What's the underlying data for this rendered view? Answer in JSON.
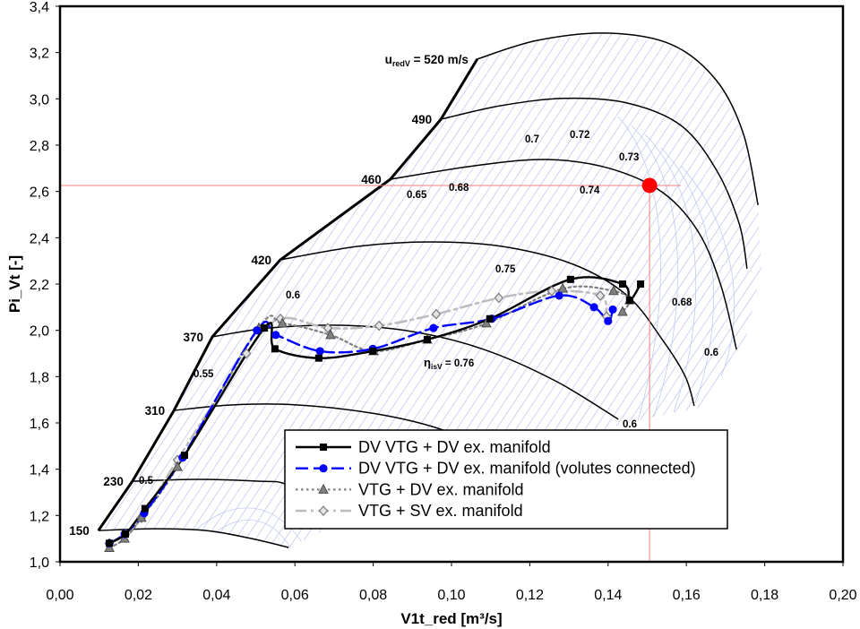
{
  "chart_data": {
    "type": "line",
    "xlabel": "V1t_red [m³/s]",
    "ylabel": "Pi_Vt [-]",
    "xlim": [
      0,
      0.2
    ],
    "ylim": [
      1.0,
      3.4
    ],
    "x_tick_labels": [
      "0,00",
      "0,02",
      "0,04",
      "0,06",
      "0,08",
      "0,10",
      "0,12",
      "0,14",
      "0,16",
      "0,18",
      "0,20"
    ],
    "y_tick_labels": [
      "1,0",
      "1,2",
      "1,4",
      "1,6",
      "1,8",
      "2,0",
      "2,2",
      "2,4",
      "2,6",
      "2,8",
      "3,0",
      "3,2",
      "3,4"
    ],
    "grid": false,
    "legend_position": "bottom-center",
    "series": [
      {
        "name": "DV VTG + DV ex. manifold",
        "color": "#000000",
        "x": [
          0.0126,
          0.0167,
          0.0217,
          0.0318,
          0.0522,
          0.0549,
          0.0661,
          0.0799,
          0.0938,
          0.1098,
          0.1304,
          0.1437,
          0.1455,
          0.1483
        ],
        "y": [
          1.08,
          1.12,
          1.23,
          1.46,
          2.01,
          1.92,
          1.88,
          1.91,
          1.96,
          2.05,
          2.22,
          2.2,
          2.13,
          2.2
        ]
      },
      {
        "name": "DV VTG + DV ex. manifold (volutes connected)",
        "color": "#0000ff",
        "x": [
          0.0126,
          0.0165,
          0.0215,
          0.0313,
          0.0503,
          0.0551,
          0.0664,
          0.0799,
          0.0954,
          0.1103,
          0.1275,
          0.1364,
          0.14,
          0.1412
        ],
        "y": [
          1.08,
          1.12,
          1.21,
          1.45,
          2.0,
          1.98,
          1.91,
          1.92,
          2.01,
          2.05,
          2.15,
          2.1,
          2.04,
          2.09
        ]
      },
      {
        "name": "VTG + DV ex. manifold",
        "color": "#808080",
        "x": [
          0.0126,
          0.0165,
          0.0208,
          0.03,
          0.0508,
          0.0568,
          0.0691,
          0.0801,
          0.0938,
          0.1089,
          0.1284,
          0.1414,
          0.1455,
          0.1437
        ],
        "y": [
          1.06,
          1.1,
          1.19,
          1.41,
          2.01,
          2.03,
          1.98,
          1.91,
          1.96,
          2.03,
          2.18,
          2.17,
          2.13,
          2.08
        ]
      },
      {
        "name": "VTG + SV ex. manifold",
        "color": "#bdbdbd",
        "x": [
          0.0126,
          0.0167,
          0.0208,
          0.03,
          0.0476,
          0.0563,
          0.0684,
          0.0815,
          0.0961,
          0.1121,
          0.1256,
          0.138,
          0.1396
        ],
        "y": [
          1.08,
          1.12,
          1.19,
          1.44,
          1.9,
          2.05,
          2.01,
          2.02,
          2.07,
          2.14,
          2.17,
          2.15,
          2.06
        ]
      }
    ],
    "surge_line": [
      [
        0.0098,
        1.135
      ],
      [
        0.0185,
        1.348
      ],
      [
        0.0291,
        1.654
      ],
      [
        0.0389,
        1.972
      ],
      [
        0.0563,
        2.305
      ],
      [
        0.0844,
        2.653
      ],
      [
        0.0973,
        2.912
      ],
      [
        0.1066,
        3.172
      ]
    ],
    "speed_lines": [
      {
        "label": "150",
        "points": [
          [
            0.0098,
            1.135
          ],
          [
            0.0236,
            1.143
          ],
          [
            0.0373,
            1.135
          ],
          [
            0.0487,
            1.101
          ],
          [
            0.0584,
            1.062
          ]
        ]
      },
      {
        "label": "230",
        "points": [
          [
            0.0185,
            1.348
          ],
          [
            0.035,
            1.356
          ],
          [
            0.051,
            1.348
          ],
          [
            0.0574,
            1.337
          ],
          [
            0.067,
            1.259
          ]
        ]
      },
      {
        "label": "310",
        "points": [
          [
            0.0291,
            1.654
          ],
          [
            0.0442,
            1.678
          ],
          [
            0.0602,
            1.678
          ],
          [
            0.0808,
            1.639
          ],
          [
            0.0979,
            1.569
          ],
          [
            0.1128,
            1.453
          ]
        ]
      },
      {
        "label": "370",
        "points": [
          [
            0.0389,
            1.972
          ],
          [
            0.0533,
            2.01
          ],
          [
            0.0716,
            2.022
          ],
          [
            0.0899,
            1.995
          ],
          [
            0.1082,
            1.918
          ],
          [
            0.1265,
            1.782
          ],
          [
            0.1426,
            1.616
          ]
        ]
      },
      {
        "label": "420",
        "points": [
          [
            0.0563,
            2.305
          ],
          [
            0.0762,
            2.363
          ],
          [
            0.0945,
            2.382
          ],
          [
            0.1128,
            2.363
          ],
          [
            0.1311,
            2.285
          ],
          [
            0.1449,
            2.15
          ],
          [
            0.154,
            1.956
          ],
          [
            0.1597,
            1.801
          ],
          [
            0.162,
            1.674
          ]
        ]
      },
      {
        "label": "460",
        "points": [
          [
            0.0844,
            2.653
          ],
          [
            0.1059,
            2.711
          ],
          [
            0.1243,
            2.738
          ],
          [
            0.1403,
            2.7
          ],
          [
            0.154,
            2.595
          ],
          [
            0.1632,
            2.421
          ],
          [
            0.1689,
            2.189
          ],
          [
            0.1728,
            1.918
          ]
        ]
      },
      {
        "label": "490",
        "points": [
          [
            0.0973,
            2.912
          ],
          [
            0.1128,
            2.971
          ],
          [
            0.1288,
            3.002
          ],
          [
            0.1449,
            2.982
          ],
          [
            0.1586,
            2.885
          ],
          [
            0.1677,
            2.692
          ],
          [
            0.1735,
            2.46
          ],
          [
            0.1755,
            2.266
          ]
        ]
      },
      {
        "label": "520",
        "points": [
          [
            0.1066,
            3.172
          ],
          [
            0.122,
            3.253
          ],
          [
            0.1403,
            3.284
          ],
          [
            0.1563,
            3.234
          ],
          [
            0.1677,
            3.079
          ],
          [
            0.1746,
            2.847
          ],
          [
            0.1783,
            2.541
          ]
        ]
      }
    ],
    "speed_label_prefix": {
      "symbol": "u",
      "subscript": "redV",
      "equals": " = ",
      "unit": " m/s"
    },
    "efficiency_labels": [
      "0.5",
      "0.55",
      "0.6",
      "0.65",
      "0.68",
      "0.7",
      "0.72",
      "0.73",
      "0.74",
      "0.75",
      "0.76",
      "0.68",
      "0.6",
      "0.6"
    ],
    "efficiency_label_prefix": {
      "symbol": "η",
      "subscript": "isV",
      "equals": " = "
    },
    "operating_point": {
      "x": 0.1506,
      "y": 2.626,
      "color": "#ff0000"
    },
    "reference_line_color": "#f08080",
    "contour_color": "#c4caf0"
  }
}
